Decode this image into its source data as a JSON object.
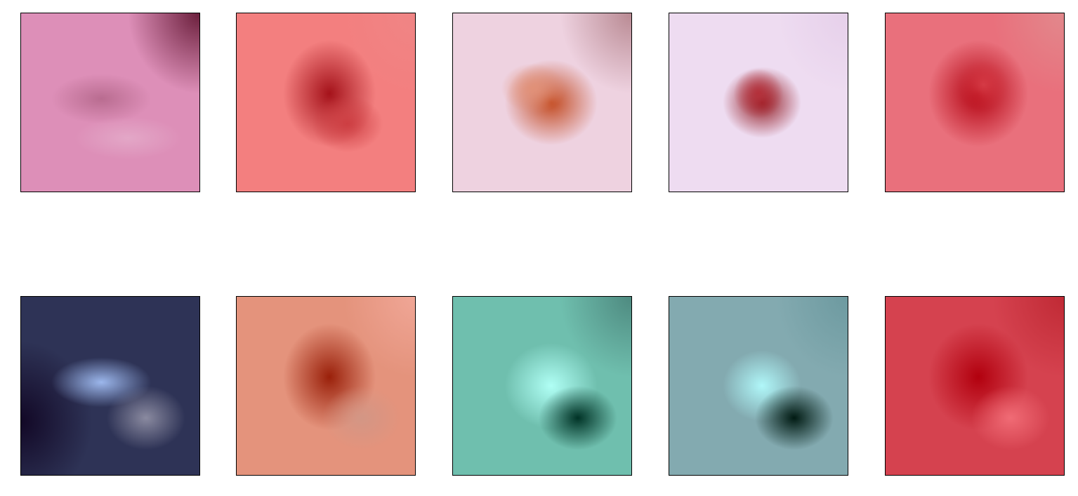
{
  "figure": {
    "rows": [
      {
        "row_kind": "input images",
        "panels": [
          {
            "name": "skin-lesion-image-1",
            "bg": "#dd8fb8",
            "spot": "#b96c90",
            "spot2": "#e3a7c7",
            "corner": "#6b1f3c"
          },
          {
            "name": "skin-lesion-image-2",
            "bg": "#f37f7f",
            "spot": "#a5121a",
            "spot2": "#cd3e42",
            "corner": "#f08585"
          },
          {
            "name": "skin-lesion-image-3",
            "bg": "#eed2e0",
            "spot": "#c2491f",
            "spot2": "#e19178",
            "corner": "#b98a93"
          },
          {
            "name": "skin-lesion-image-4",
            "bg": "#eedcf1",
            "spot": "#8f141b",
            "spot2": "#b4303a",
            "corner": "#e6d0ea"
          },
          {
            "name": "skin-lesion-image-5",
            "bg": "#e9707c",
            "spot": "#b2000e",
            "spot2": "#d53a45",
            "corner": "#e2888c"
          }
        ]
      },
      {
        "row_kind": "feature maps",
        "panels": [
          {
            "name": "feature-map-1",
            "bg": "#2e3356",
            "spot": "#9cb7ec",
            "spot2": "#8a8aa0",
            "corner": "#120826"
          },
          {
            "name": "feature-map-2",
            "bg": "#e4937c",
            "spot": "#9a200a",
            "spot2": "#d39685",
            "corner": "#f0a696"
          },
          {
            "name": "feature-map-3",
            "bg": "#6fbfae",
            "spot": "#b0fff5",
            "spot2": "#003326",
            "corner": "#4e8a80"
          },
          {
            "name": "feature-map-4",
            "bg": "#83aab0",
            "spot": "#b0f7f9",
            "spot2": "#001a12",
            "corner": "#6d9aa0"
          },
          {
            "name": "feature-map-5",
            "bg": "#d5424f",
            "spot": "#b2000e",
            "spot2": "#f06b75",
            "corner": "#c02a35"
          }
        ]
      }
    ]
  }
}
